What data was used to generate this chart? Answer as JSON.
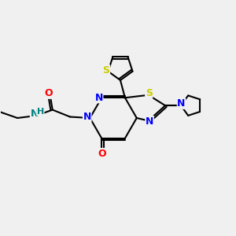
{
  "background_color": "#f0f0f0",
  "bond_color": "#000000",
  "bond_width": 1.5,
  "atom_colors": {
    "N": "#0000ff",
    "O": "#ff0000",
    "S": "#cccc00",
    "S_thiazole": "#cccc00",
    "C": "#000000",
    "H": "#008080"
  },
  "font_size": 8,
  "fig_width": 3.0,
  "fig_height": 3.0,
  "dpi": 100
}
